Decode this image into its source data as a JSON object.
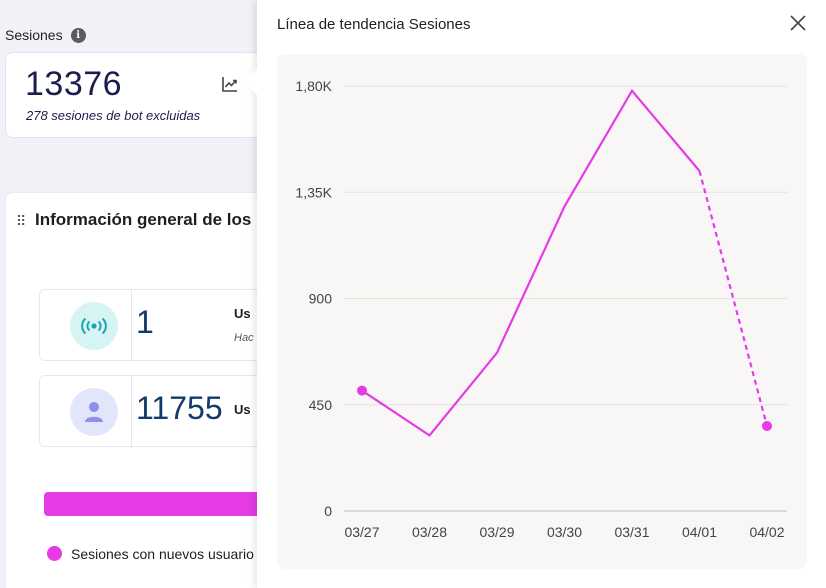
{
  "dashboard": {
    "sessions_label": "Sesiones",
    "kpi_value": "13376",
    "kpi_sub": "278 sesiones de bot excluidas",
    "overview_title": "Información general de los u",
    "rows": [
      {
        "value": "1",
        "label": "Us",
        "sub": "Hac"
      },
      {
        "value": "11755",
        "label": "Us",
        "sub": ""
      }
    ],
    "legend_label": "Sesiones con nuevos usuario",
    "accent_color": "#e63ae6"
  },
  "panel": {
    "title": "Línea de tendencia Sesiones",
    "close_icon": "close-icon"
  },
  "chart_data": {
    "type": "line",
    "x": [
      "03/27",
      "03/28",
      "03/29",
      "03/30",
      "03/31",
      "04/01",
      "04/02"
    ],
    "y_ticks": [
      "0",
      "450",
      "900",
      "1,35K",
      "1,80K"
    ],
    "ylim": [
      0,
      1800
    ],
    "series": [
      {
        "values": [
          510,
          320,
          670,
          1290,
          1780,
          1440,
          360
        ],
        "color": "#e63ae6",
        "dashed_from_index": 5
      }
    ],
    "grid": true
  }
}
